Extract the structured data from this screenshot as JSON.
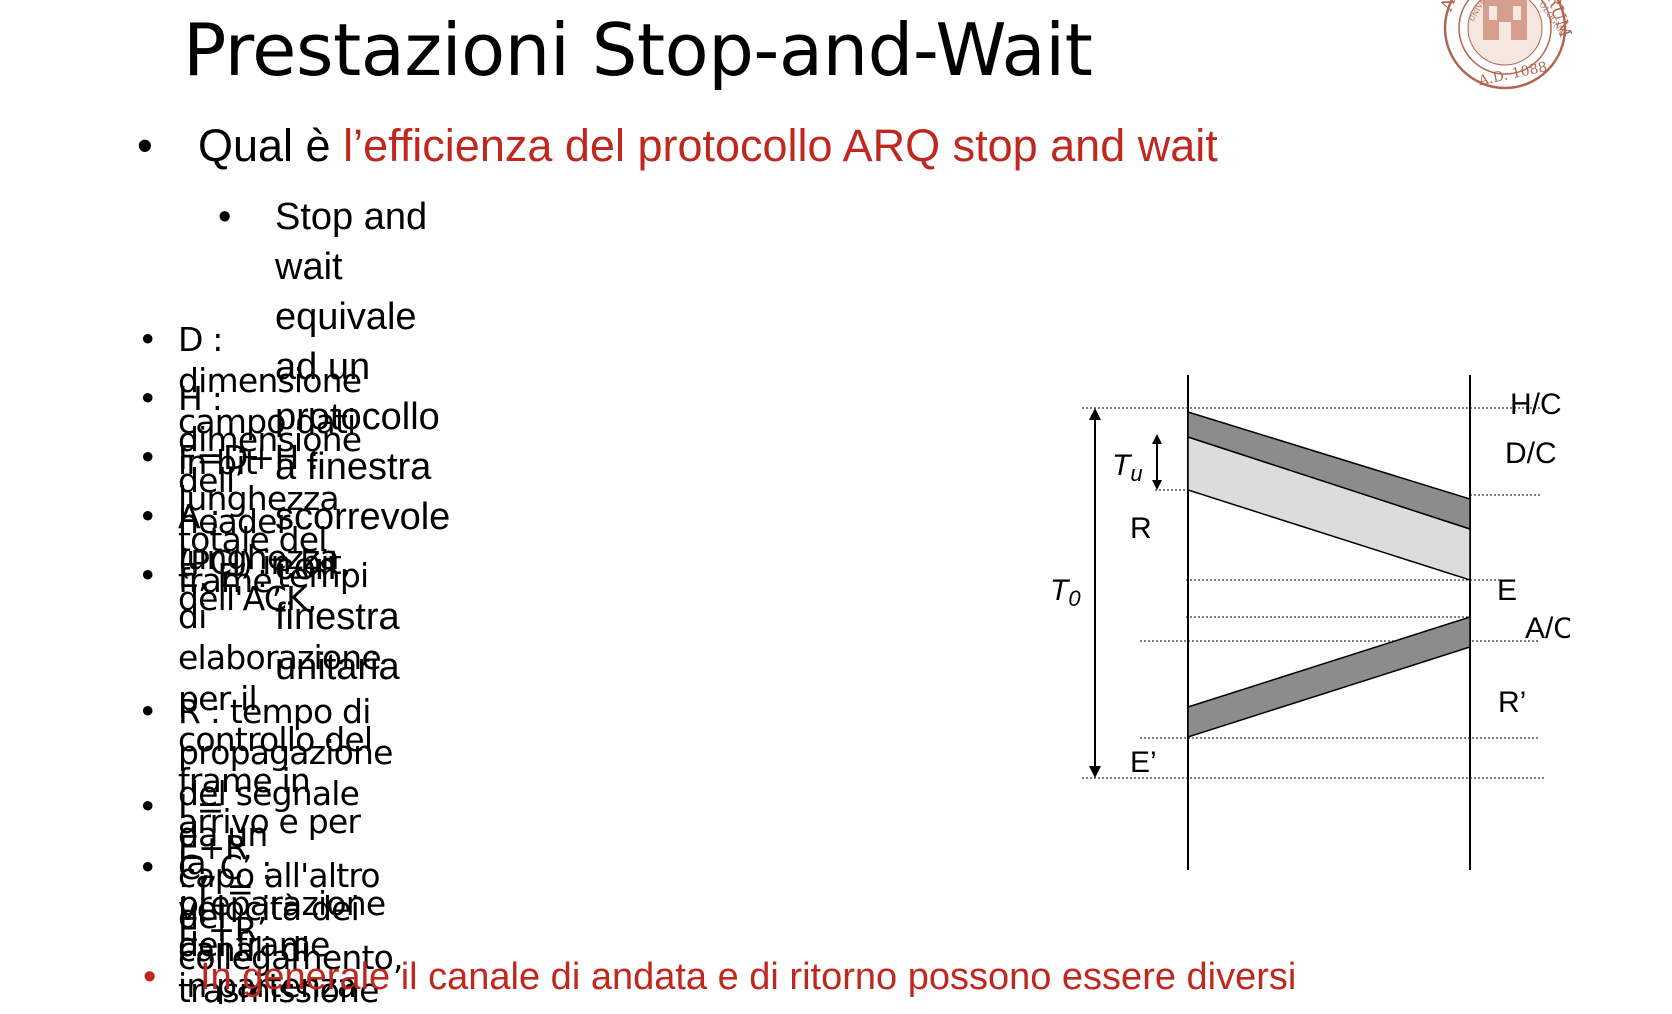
{
  "slide": {
    "title": "Prestazioni Stop-and-Wait",
    "logo": {
      "icon": "university-of-bologna-seal",
      "text": "ALMA MATER STUDIORUM A.D. 1088"
    }
  },
  "question": {
    "bullet": "•",
    "prefix": "Qual è ",
    "highlight": "l’efficienza del protocollo ARQ stop and wait"
  },
  "subpoint": {
    "bullet": "•",
    "text": "Stop and wait equivale ad un protocollo a finestra scorrevole con\nfinestra unitaria"
  },
  "definitions": [
    {
      "bullet": "•",
      "text": "D : dimensione campo dati in bit"
    },
    {
      "bullet": "•",
      "text": "H : dimensione dell’ header (PCI) in bit,"
    },
    {
      "bullet": "•",
      "text": "F=D+H : lunghezza totale del frame,"
    },
    {
      "bullet": "•",
      "text": "A : lunghezza dell'ACK,"
    },
    {
      "bullet": "•",
      "text": "E, E’ : tempi di elaborazione per il controllo del\nframe in arrivo e per la preparazione del frame\nin partenza"
    },
    {
      "bullet": "•",
      "text": "R : tempo di propagazione del segnale da un\ncapo all'altro del collegamento,"
    },
    {
      "bullet": "•",
      "text": "I = E+R ;  I’ = E’+R’"
    },
    {
      "bullet": "•",
      "text": "C, C’ : velocità dei canali di trasmissione"
    }
  ],
  "footer": {
    "bullet": "•",
    "text": "In generale il canale di andata e di ritorno possono essere diversi"
  },
  "diagram": {
    "labels": {
      "hc": "H/C",
      "dc": "D/C",
      "tu_main": "T",
      "tu_sub": "u",
      "r": "R",
      "t0_main": "T",
      "t0_sub": "0",
      "e": "E",
      "ac": "A/C’",
      "rprime": "R’",
      "eprime": "E’"
    },
    "colors": {
      "header_band": "#8c8c8c",
      "data_band": "#dcdcdc",
      "ack_band": "#8c8c8c"
    }
  }
}
